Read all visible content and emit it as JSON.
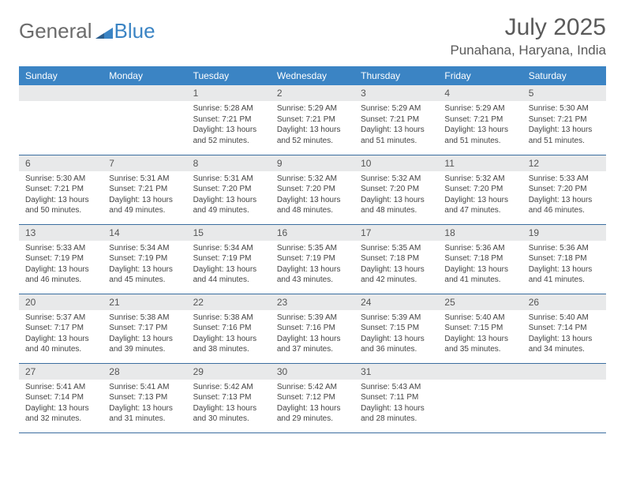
{
  "logo": {
    "word1": "General",
    "word2": "Blue"
  },
  "header": {
    "month_title": "July 2025",
    "location": "Punahana, Haryana, India"
  },
  "calendar": {
    "header_bg": "#3b84c4",
    "header_fg": "#ffffff",
    "day_bg": "#e8e9ea",
    "border_color": "#3b6ea0",
    "weekdays": [
      "Sunday",
      "Monday",
      "Tuesday",
      "Wednesday",
      "Thursday",
      "Friday",
      "Saturday"
    ],
    "first_weekday_index": 2,
    "days": [
      {
        "n": 1,
        "sunrise": "5:28 AM",
        "sunset": "7:21 PM",
        "daylight": "13 hours and 52 minutes."
      },
      {
        "n": 2,
        "sunrise": "5:29 AM",
        "sunset": "7:21 PM",
        "daylight": "13 hours and 52 minutes."
      },
      {
        "n": 3,
        "sunrise": "5:29 AM",
        "sunset": "7:21 PM",
        "daylight": "13 hours and 51 minutes."
      },
      {
        "n": 4,
        "sunrise": "5:29 AM",
        "sunset": "7:21 PM",
        "daylight": "13 hours and 51 minutes."
      },
      {
        "n": 5,
        "sunrise": "5:30 AM",
        "sunset": "7:21 PM",
        "daylight": "13 hours and 51 minutes."
      },
      {
        "n": 6,
        "sunrise": "5:30 AM",
        "sunset": "7:21 PM",
        "daylight": "13 hours and 50 minutes."
      },
      {
        "n": 7,
        "sunrise": "5:31 AM",
        "sunset": "7:21 PM",
        "daylight": "13 hours and 49 minutes."
      },
      {
        "n": 8,
        "sunrise": "5:31 AM",
        "sunset": "7:20 PM",
        "daylight": "13 hours and 49 minutes."
      },
      {
        "n": 9,
        "sunrise": "5:32 AM",
        "sunset": "7:20 PM",
        "daylight": "13 hours and 48 minutes."
      },
      {
        "n": 10,
        "sunrise": "5:32 AM",
        "sunset": "7:20 PM",
        "daylight": "13 hours and 48 minutes."
      },
      {
        "n": 11,
        "sunrise": "5:32 AM",
        "sunset": "7:20 PM",
        "daylight": "13 hours and 47 minutes."
      },
      {
        "n": 12,
        "sunrise": "5:33 AM",
        "sunset": "7:20 PM",
        "daylight": "13 hours and 46 minutes."
      },
      {
        "n": 13,
        "sunrise": "5:33 AM",
        "sunset": "7:19 PM",
        "daylight": "13 hours and 46 minutes."
      },
      {
        "n": 14,
        "sunrise": "5:34 AM",
        "sunset": "7:19 PM",
        "daylight": "13 hours and 45 minutes."
      },
      {
        "n": 15,
        "sunrise": "5:34 AM",
        "sunset": "7:19 PM",
        "daylight": "13 hours and 44 minutes."
      },
      {
        "n": 16,
        "sunrise": "5:35 AM",
        "sunset": "7:19 PM",
        "daylight": "13 hours and 43 minutes."
      },
      {
        "n": 17,
        "sunrise": "5:35 AM",
        "sunset": "7:18 PM",
        "daylight": "13 hours and 42 minutes."
      },
      {
        "n": 18,
        "sunrise": "5:36 AM",
        "sunset": "7:18 PM",
        "daylight": "13 hours and 41 minutes."
      },
      {
        "n": 19,
        "sunrise": "5:36 AM",
        "sunset": "7:18 PM",
        "daylight": "13 hours and 41 minutes."
      },
      {
        "n": 20,
        "sunrise": "5:37 AM",
        "sunset": "7:17 PM",
        "daylight": "13 hours and 40 minutes."
      },
      {
        "n": 21,
        "sunrise": "5:38 AM",
        "sunset": "7:17 PM",
        "daylight": "13 hours and 39 minutes."
      },
      {
        "n": 22,
        "sunrise": "5:38 AM",
        "sunset": "7:16 PM",
        "daylight": "13 hours and 38 minutes."
      },
      {
        "n": 23,
        "sunrise": "5:39 AM",
        "sunset": "7:16 PM",
        "daylight": "13 hours and 37 minutes."
      },
      {
        "n": 24,
        "sunrise": "5:39 AM",
        "sunset": "7:15 PM",
        "daylight": "13 hours and 36 minutes."
      },
      {
        "n": 25,
        "sunrise": "5:40 AM",
        "sunset": "7:15 PM",
        "daylight": "13 hours and 35 minutes."
      },
      {
        "n": 26,
        "sunrise": "5:40 AM",
        "sunset": "7:14 PM",
        "daylight": "13 hours and 34 minutes."
      },
      {
        "n": 27,
        "sunrise": "5:41 AM",
        "sunset": "7:14 PM",
        "daylight": "13 hours and 32 minutes."
      },
      {
        "n": 28,
        "sunrise": "5:41 AM",
        "sunset": "7:13 PM",
        "daylight": "13 hours and 31 minutes."
      },
      {
        "n": 29,
        "sunrise": "5:42 AM",
        "sunset": "7:13 PM",
        "daylight": "13 hours and 30 minutes."
      },
      {
        "n": 30,
        "sunrise": "5:42 AM",
        "sunset": "7:12 PM",
        "daylight": "13 hours and 29 minutes."
      },
      {
        "n": 31,
        "sunrise": "5:43 AM",
        "sunset": "7:11 PM",
        "daylight": "13 hours and 28 minutes."
      }
    ],
    "labels": {
      "sunrise_prefix": "Sunrise: ",
      "sunset_prefix": "Sunset: ",
      "daylight_prefix": "Daylight: "
    }
  }
}
